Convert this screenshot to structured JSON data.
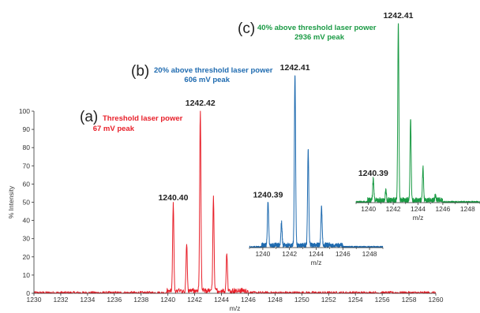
{
  "chart_data": [
    {
      "id": "a",
      "type": "line",
      "panel_letter": "(a)",
      "condition_line1": "Threshold laser power",
      "condition_line2": "67 mV peak",
      "color": "#e8202a",
      "xlabel": "m/z",
      "ylabel": "% Intensity",
      "xlim": [
        1230,
        1260
      ],
      "ylim": [
        0,
        100
      ],
      "xticks": [
        1230,
        1232,
        1234,
        1236,
        1238,
        1240,
        1242,
        1244,
        1246,
        1248,
        1250,
        1252,
        1254,
        1256,
        1258,
        1260
      ],
      "yticks": [
        0,
        10,
        20,
        30,
        40,
        50,
        60,
        70,
        80,
        90,
        100
      ],
      "peaks": [
        {
          "mz": 1240.4,
          "intensity": 48
        },
        {
          "mz": 1241.4,
          "intensity": 26
        },
        {
          "mz": 1242.42,
          "intensity": 100
        },
        {
          "mz": 1243.4,
          "intensity": 52
        },
        {
          "mz": 1244.4,
          "intensity": 21
        }
      ],
      "peak_labels": [
        {
          "mz": 1240.4,
          "intensity": 48,
          "text": "1240.40"
        },
        {
          "mz": 1242.42,
          "intensity": 100,
          "text": "1242.42"
        }
      ]
    },
    {
      "id": "b",
      "type": "line",
      "panel_letter": "(b)",
      "condition_line1": "20% above threshold laser power",
      "condition_line2": "606 mV peak",
      "color": "#1f6bb0",
      "xlabel": "m/z",
      "xlim": [
        1239,
        1249
      ],
      "xticks": [
        1240,
        1242,
        1244,
        1246,
        1248
      ],
      "peaks": [
        {
          "mz": 1240.39,
          "intensity": 26
        },
        {
          "mz": 1241.4,
          "intensity": 13
        },
        {
          "mz": 1242.41,
          "intensity": 100
        },
        {
          "mz": 1243.4,
          "intensity": 56
        },
        {
          "mz": 1244.4,
          "intensity": 22
        }
      ],
      "peak_labels": [
        {
          "mz": 1240.39,
          "intensity": 26,
          "text": "1240.39"
        },
        {
          "mz": 1242.41,
          "intensity": 100,
          "text": "1242.41"
        }
      ]
    },
    {
      "id": "c",
      "type": "line",
      "panel_letter": "(c)",
      "condition_line1": "40% above threshold laser power",
      "condition_line2": "2936 mV peak",
      "color": "#1a9a44",
      "xlabel": "m/z",
      "xlim": [
        1239,
        1249
      ],
      "xticks": [
        1240,
        1242,
        1244,
        1246,
        1248
      ],
      "peaks": [
        {
          "mz": 1240.39,
          "intensity": 12
        },
        {
          "mz": 1241.4,
          "intensity": 6
        },
        {
          "mz": 1242.41,
          "intensity": 100
        },
        {
          "mz": 1243.4,
          "intensity": 46
        },
        {
          "mz": 1244.4,
          "intensity": 18
        },
        {
          "mz": 1245.4,
          "intensity": 3
        }
      ],
      "peak_labels": [
        {
          "mz": 1240.39,
          "intensity": 12,
          "text": "1240.39"
        },
        {
          "mz": 1242.41,
          "intensity": 100,
          "text": "1242.41"
        }
      ]
    }
  ]
}
